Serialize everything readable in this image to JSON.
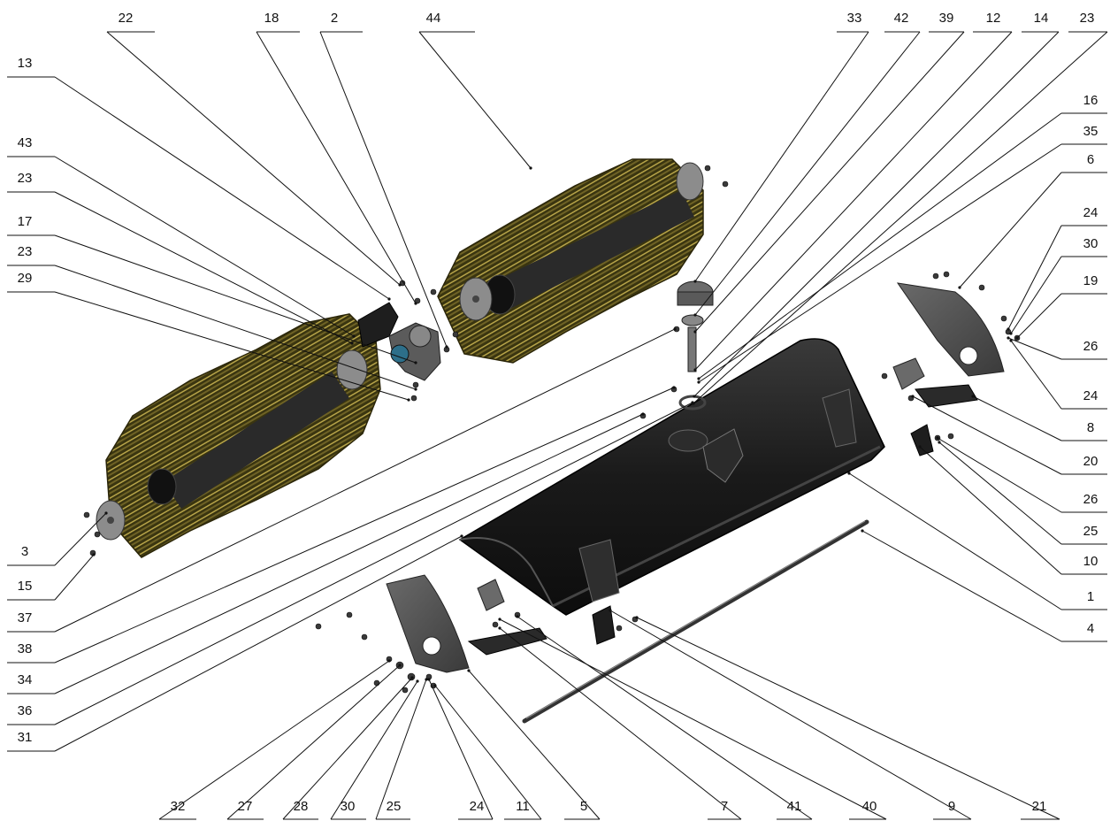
{
  "diagram": {
    "parts_callouts": {
      "top": [
        "22",
        "18",
        "2",
        "44",
        "33",
        "42",
        "39",
        "12",
        "14",
        "23"
      ],
      "left": [
        "13",
        "43",
        "23",
        "17",
        "23",
        "29",
        "3",
        "15",
        "37",
        "38",
        "34",
        "36",
        "31"
      ],
      "right": [
        "16",
        "35",
        "6",
        "24",
        "30",
        "19",
        "26",
        "24",
        "8",
        "20",
        "26",
        "25",
        "10",
        "1",
        "4"
      ],
      "bottom": [
        "32",
        "27",
        "28",
        "30",
        "25",
        "24",
        "11",
        "5",
        "7",
        "41",
        "40",
        "9",
        "21"
      ]
    },
    "components": [
      "left-brush-roller",
      "right-brush-roller",
      "housing-cover",
      "left-end-plate",
      "right-end-plate",
      "drive-shaft",
      "gearbox",
      "motor-mount",
      "pivot-post"
    ],
    "colors": {
      "bristle": "#8a7a2a",
      "bristle_dark": "#3a3510",
      "housing": "#1e1e1e",
      "plate": "#4a4a4a",
      "line": "#111111"
    }
  }
}
